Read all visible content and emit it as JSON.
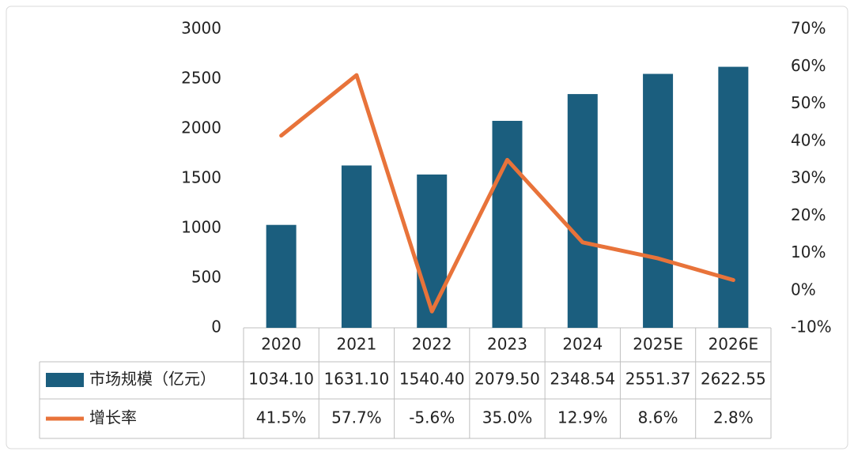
{
  "chart_data": {
    "type": "bar",
    "categories": [
      "2020",
      "2021",
      "2022",
      "2023",
      "2024",
      "2025E",
      "2026E"
    ],
    "series": [
      {
        "name": "市场规模（亿元）",
        "type": "bar",
        "color": "#1b5e7e",
        "values": [
          1034.1,
          1631.1,
          1540.4,
          2079.5,
          2348.54,
          2551.37,
          2622.55
        ],
        "value_labels": [
          "1034.10",
          "1631.10",
          "1540.40",
          "2079.50",
          "2348.54",
          "2551.37",
          "2622.55"
        ]
      },
      {
        "name": "增长率",
        "type": "line",
        "axis": "y2",
        "color": "#e8733a",
        "values": [
          41.5,
          57.7,
          -5.6,
          35.0,
          12.9,
          8.6,
          2.8
        ],
        "value_labels": [
          "41.5%",
          "57.7%",
          "-5.6%",
          "35.0%",
          "12.9%",
          "8.6%",
          "2.8%"
        ]
      }
    ],
    "ylim": [
      0,
      3000
    ],
    "yticks": [
      0,
      500,
      1000,
      1500,
      2000,
      2500,
      3000
    ],
    "y2lim": [
      -10,
      70
    ],
    "y2ticks": [
      {
        "value": -10,
        "label": "-10%"
      },
      {
        "value": 0,
        "label": "0%"
      },
      {
        "value": 10,
        "label": "10%"
      },
      {
        "value": 20,
        "label": "20%"
      },
      {
        "value": 30,
        "label": "30%"
      },
      {
        "value": 40,
        "label": "40%"
      },
      {
        "value": 50,
        "label": "50%"
      },
      {
        "value": 60,
        "label": "60%"
      },
      {
        "value": 70,
        "label": "70%"
      }
    ],
    "grid": false
  }
}
